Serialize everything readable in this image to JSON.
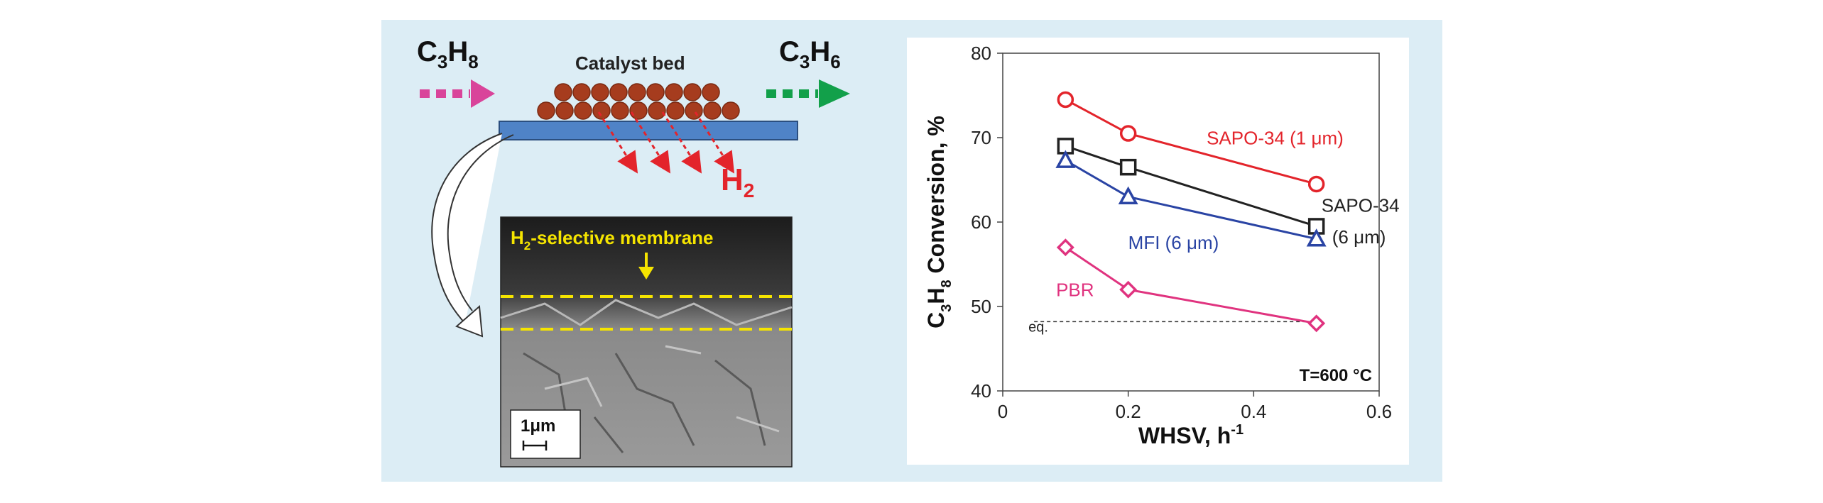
{
  "schematic": {
    "feed_label": "C3H8",
    "feed_main": "C",
    "feed_sub1": "3",
    "feed_mid": "H",
    "feed_sub2": "8",
    "product_main": "C",
    "product_sub1": "3",
    "product_mid": "H",
    "product_sub2": "6",
    "bed_label": "Catalyst bed",
    "permeate_main": "H",
    "permeate_sub": "2",
    "colors": {
      "feed_arrow": "#d9449a",
      "product_arrow": "#12a04a",
      "catalyst": "#a63c1e",
      "membrane": "#4f83c7",
      "h2": "#e3242b"
    }
  },
  "micrograph": {
    "label_main": "H",
    "label_sub": "2",
    "label_rest": "-selective membrane",
    "scale_label": "1μm",
    "line_color": "#f5e400"
  },
  "chart_data": {
    "type": "line",
    "xlabel_main": "WHSV, h",
    "xlabel_sup": "-1",
    "ylabel_parts": [
      "C",
      "3",
      "H",
      "8",
      " Conversion, %"
    ],
    "xlim": [
      0,
      0.6
    ],
    "ylim": [
      40,
      80
    ],
    "xticks": [
      0,
      0.2,
      0.4,
      0.6
    ],
    "xtick_labels": [
      "0",
      "0.2",
      "0.4",
      "0.6"
    ],
    "yticks": [
      40,
      50,
      60,
      70,
      80
    ],
    "ytick_labels": [
      "40",
      "50",
      "60",
      "70",
      "80"
    ],
    "annotation": "T=600 °C",
    "series": [
      {
        "name": "SAPO-34 (1 μm)",
        "marker": "circle",
        "color": "#e3242b",
        "x": [
          0.1,
          0.2,
          0.5
        ],
        "y": [
          74.5,
          70.5,
          64.5
        ]
      },
      {
        "name": "SAPO-34 (6 μm)",
        "name_line1": "SAPO-34",
        "name_line2": "(6 μm)",
        "marker": "square",
        "color": "#222222",
        "x": [
          0.1,
          0.2,
          0.5
        ],
        "y": [
          69,
          66.5,
          59.5
        ]
      },
      {
        "name": "MFI (6 μm)",
        "marker": "triangle",
        "color": "#2a44a4",
        "x": [
          0.1,
          0.2,
          0.5
        ],
        "y": [
          67.3,
          63,
          58
        ]
      },
      {
        "name": "PBR",
        "marker": "diamond",
        "color": "#e0337f",
        "x": [
          0.1,
          0.2,
          0.5
        ],
        "y": [
          57,
          52,
          48
        ]
      }
    ],
    "equilibrium": {
      "label": "eq.",
      "y": 48.2,
      "x": [
        0.05,
        0.5
      ]
    }
  }
}
